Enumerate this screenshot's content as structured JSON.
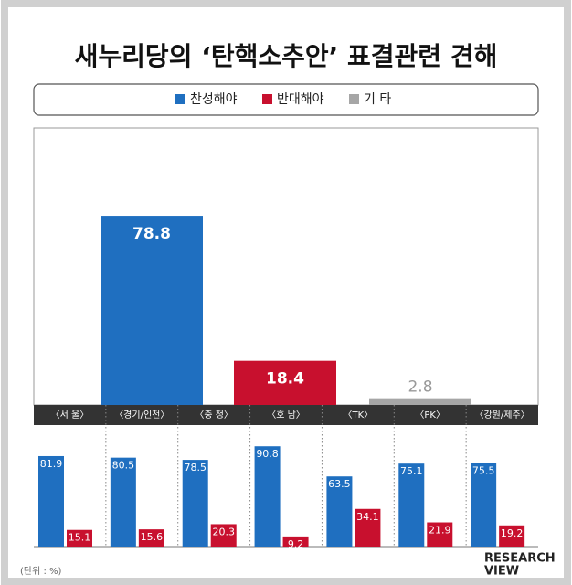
{
  "title": "새누리당의 ‘탄핵소추안’ 표결관련 견해",
  "unit_note": "(단위 : %)",
  "logo": {
    "line1": "RESEARCH",
    "line2": "VIEW"
  },
  "chart_data": [
    {
      "type": "bar",
      "categories": [
        null
      ],
      "series": [
        {
          "name": "찬성해야",
          "color": "#1f6fc0",
          "values": [
            78.8
          ]
        },
        {
          "name": "반대해야",
          "color": "#c8102e",
          "values": [
            18.4
          ]
        },
        {
          "name": "기 타",
          "color": "#a6a6a6",
          "values": [
            2.8
          ]
        }
      ],
      "ylim": [
        0,
        115
      ]
    },
    {
      "type": "bar",
      "categories": [
        "〈서 울〉",
        "〈경기/인천〉",
        "〈충 청〉",
        "〈호 남〉",
        "〈TK〉",
        "〈PK〉",
        "〈강원/제주〉"
      ],
      "series": [
        {
          "color": "#1f6fc0",
          "values": [
            81.9,
            80.5,
            78.5,
            90.8,
            63.5,
            75.1,
            75.5
          ]
        },
        {
          "color": "#c8102e",
          "values": [
            15.1,
            15.6,
            20.3,
            9.2,
            34.1,
            21.9,
            19.2
          ]
        }
      ],
      "ylim": [
        0,
        110
      ]
    }
  ]
}
